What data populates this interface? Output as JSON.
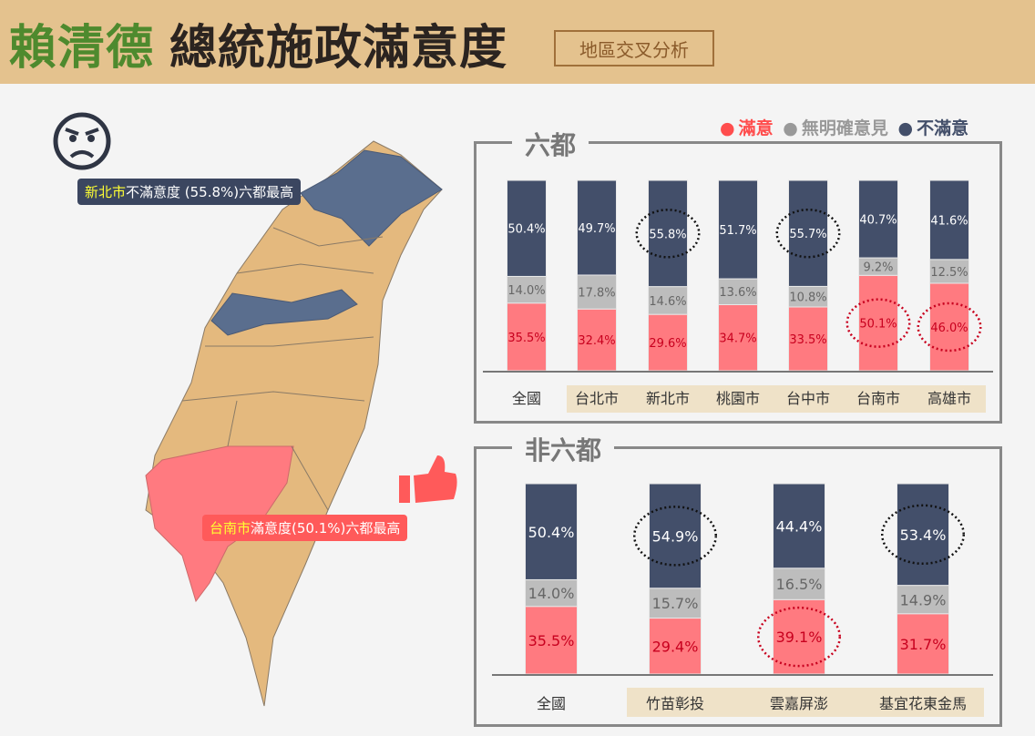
{
  "header": {
    "title_green": "賴清德",
    "title_dark": "總統施政滿意度",
    "subtitle": "地區交叉分析"
  },
  "legend": {
    "satisfied": "滿意",
    "no_opinion": "無明確意見",
    "dissatisfied": "不滿意"
  },
  "colors": {
    "satisfied": "#ff7a80",
    "no_opinion": "#bdbdbd",
    "dissatisfied": "#434f6a",
    "label_red": "#c8001e"
  },
  "callouts": {
    "north": {
      "hl": "新北市",
      "text": "不滿意度 (55.8%)六都最高"
    },
    "south": {
      "hl": "台南市",
      "text": "滿意度(50.1%)六都最高"
    }
  },
  "chart_data": [
    {
      "type": "bar",
      "stacked": true,
      "title": "六都",
      "categories": [
        "全國",
        "台北市",
        "新北市",
        "桃園市",
        "台中市",
        "台南市",
        "高雄市"
      ],
      "series": [
        {
          "name": "滿意",
          "values": [
            35.5,
            32.4,
            29.6,
            34.7,
            33.5,
            50.1,
            46.0
          ]
        },
        {
          "name": "無明確意見",
          "values": [
            14.0,
            17.8,
            14.6,
            13.6,
            10.8,
            9.2,
            12.5
          ]
        },
        {
          "name": "不滿意",
          "values": [
            50.4,
            49.7,
            55.8,
            51.7,
            55.7,
            40.7,
            41.6
          ]
        }
      ],
      "highlights": [
        {
          "category": "新北市",
          "series": "不滿意"
        },
        {
          "category": "台中市",
          "series": "不滿意"
        },
        {
          "category": "台南市",
          "series": "滿意"
        },
        {
          "category": "高雄市",
          "series": "滿意"
        }
      ]
    },
    {
      "type": "bar",
      "stacked": true,
      "title": "非六都",
      "categories": [
        "全國",
        "竹苗彰投",
        "雲嘉屏澎",
        "基宜花東金馬"
      ],
      "series": [
        {
          "name": "滿意",
          "values": [
            35.5,
            29.4,
            39.1,
            31.7
          ]
        },
        {
          "name": "無明確意見",
          "values": [
            14.0,
            15.7,
            16.5,
            14.9
          ]
        },
        {
          "name": "不滿意",
          "values": [
            50.4,
            54.9,
            44.4,
            53.4
          ]
        }
      ],
      "highlights": [
        {
          "category": "竹苗彰投",
          "series": "不滿意"
        },
        {
          "category": "雲嘉屏澎",
          "series": "滿意"
        },
        {
          "category": "基宜花東金馬",
          "series": "不滿意"
        }
      ]
    }
  ]
}
